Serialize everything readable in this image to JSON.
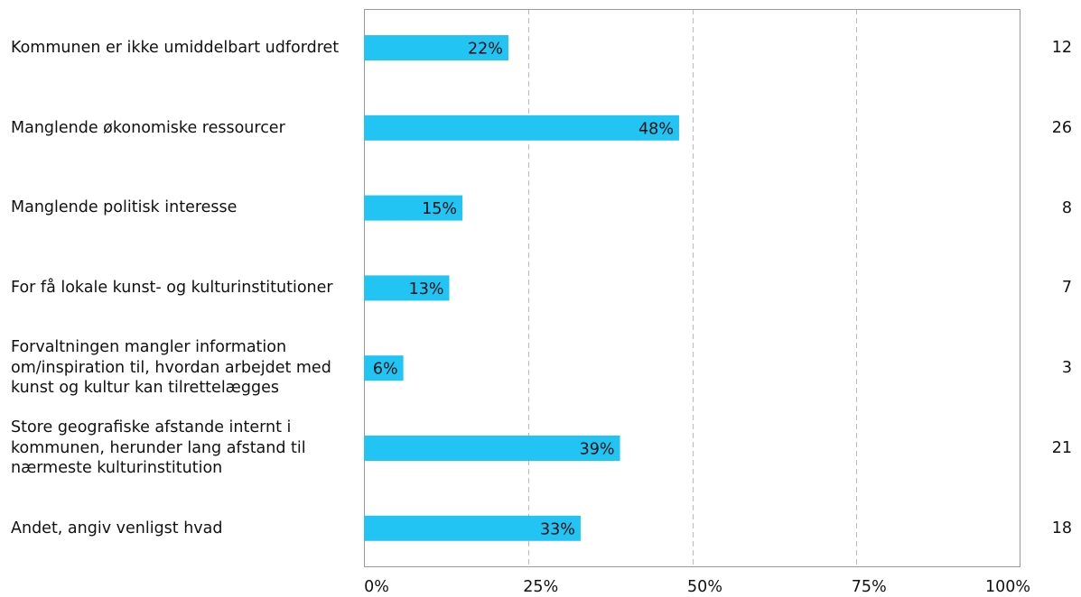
{
  "chart_data": {
    "type": "bar",
    "orientation": "horizontal",
    "title": "",
    "xlabel": "",
    "ylabel": "",
    "categories": [
      "Kommunen er ikke umiddelbart udfordret",
      "Manglende økonomiske ressourcer",
      "Manglende politisk interesse",
      "For få lokale kunst- og kulturinstitutioner",
      "Forvaltningen mangler information om/inspiration til, hvordan arbejdet med kunst og kultur kan tilrettelægges",
      "Store geografiske afstande internt i kommunen, herunder lang afstand til nærmeste kulturinstitution",
      "Andet, angiv venligst hvad"
    ],
    "values": [
      22,
      48,
      15,
      13,
      6,
      39,
      33
    ],
    "value_labels": [
      "22%",
      "48%",
      "15%",
      "13%",
      "6%",
      "39%",
      "33%"
    ],
    "counts": [
      "12",
      "26",
      "8",
      "7",
      "3",
      "21",
      "18"
    ],
    "xlim": [
      0,
      100
    ],
    "x_ticks": [
      0,
      25,
      50,
      75,
      100
    ],
    "x_tick_labels": [
      "0%",
      "25%",
      "50%",
      "75%",
      "100%"
    ],
    "grid": true,
    "bar_color": "#22c4f4",
    "grid_color": "#bbbbbb",
    "frame_color": "#999999"
  }
}
